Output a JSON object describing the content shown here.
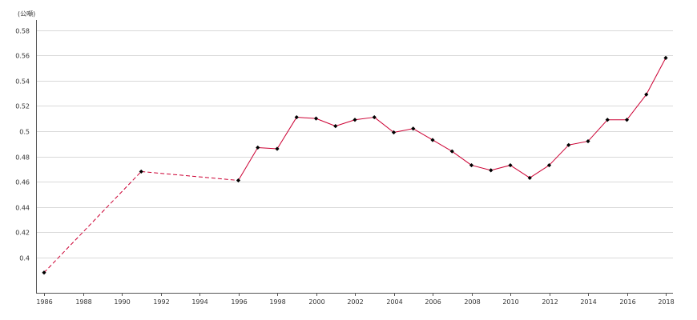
{
  "chart_data": {
    "type": "line",
    "unit_label": "(公噸)",
    "x_ticks": [
      "1986",
      "1988",
      "1990",
      "1992",
      "1994",
      "1996",
      "1998",
      "2000",
      "2002",
      "2004",
      "2006",
      "2008",
      "2010",
      "2012",
      "2014",
      "2016",
      "2018"
    ],
    "y_ticks": [
      "0.4",
      "0.42",
      "0.44",
      "0.46",
      "0.48",
      "0.5",
      "0.52",
      "0.54",
      "0.56",
      "0.58"
    ],
    "xlim": [
      1986,
      2018
    ],
    "ylim": [
      0.372,
      0.588
    ],
    "grid": true,
    "line_color": "#cc0033",
    "marker_color": "#000000",
    "dashed_segments": [
      [
        1986,
        1991
      ],
      [
        1991,
        1996
      ]
    ],
    "points": [
      {
        "x": 1986,
        "y": 0.388
      },
      {
        "x": 1991,
        "y": 0.468
      },
      {
        "x": 1996,
        "y": 0.461
      },
      {
        "x": 1997,
        "y": 0.487
      },
      {
        "x": 1998,
        "y": 0.486
      },
      {
        "x": 1999,
        "y": 0.511
      },
      {
        "x": 2000,
        "y": 0.51
      },
      {
        "x": 2001,
        "y": 0.504
      },
      {
        "x": 2002,
        "y": 0.509
      },
      {
        "x": 2003,
        "y": 0.511
      },
      {
        "x": 2004,
        "y": 0.499
      },
      {
        "x": 2005,
        "y": 0.502
      },
      {
        "x": 2006,
        "y": 0.493
      },
      {
        "x": 2007,
        "y": 0.484
      },
      {
        "x": 2008,
        "y": 0.473
      },
      {
        "x": 2009,
        "y": 0.469
      },
      {
        "x": 2010,
        "y": 0.473
      },
      {
        "x": 2011,
        "y": 0.463
      },
      {
        "x": 2012,
        "y": 0.473
      },
      {
        "x": 2013,
        "y": 0.489
      },
      {
        "x": 2014,
        "y": 0.492
      },
      {
        "x": 2015,
        "y": 0.509
      },
      {
        "x": 2016,
        "y": 0.509
      },
      {
        "x": 2017,
        "y": 0.529
      },
      {
        "x": 2018,
        "y": 0.558
      }
    ]
  }
}
